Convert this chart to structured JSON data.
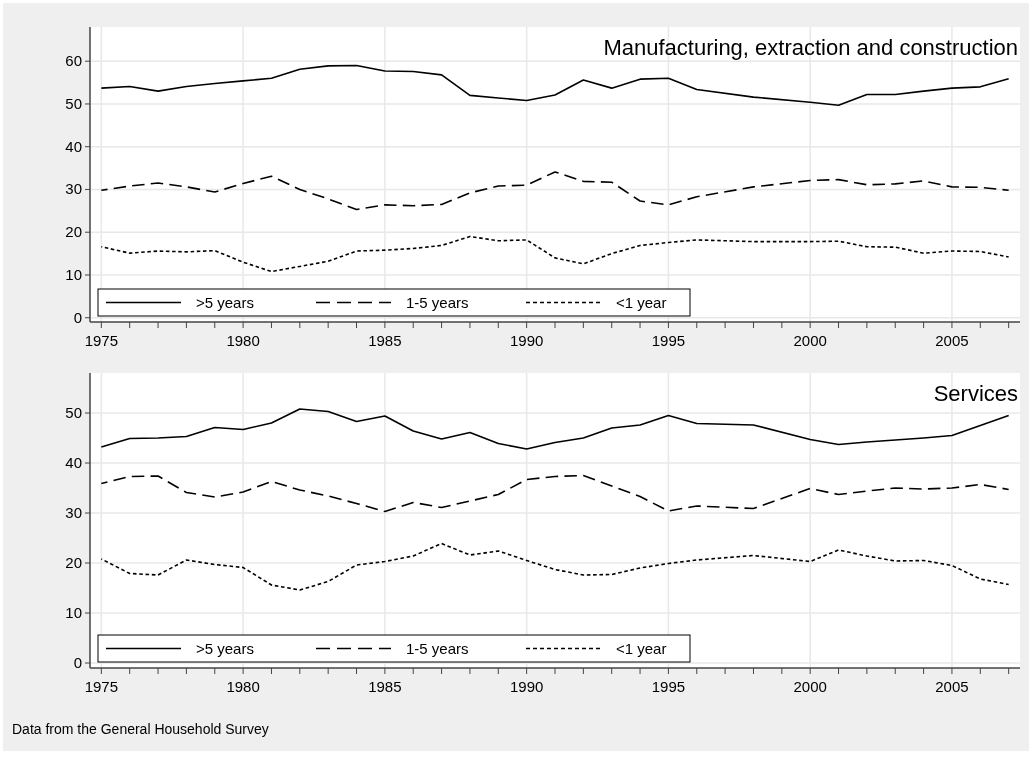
{
  "chart_data": [
    {
      "type": "line",
      "title": "Manufacturing, extraction and construction",
      "x": [
        1975,
        1976,
        1977,
        1978,
        1979,
        1980,
        1981,
        1982,
        1983,
        1984,
        1985,
        1986,
        1987,
        1988,
        1989,
        1990,
        1991,
        1992,
        1993,
        1994,
        1995,
        1996,
        1998,
        2000,
        2001,
        2002,
        2003,
        2004,
        2005,
        2006,
        2007
      ],
      "series": [
        {
          "name": ">5 years",
          "color": "#000000",
          "line_style": "solid",
          "values": [
            53.7,
            54.1,
            53.0,
            54.1,
            54.8,
            55.4,
            56.0,
            58.1,
            58.9,
            59.0,
            57.7,
            57.6,
            56.8,
            52.0,
            51.4,
            50.8,
            52.1,
            55.6,
            53.7,
            55.8,
            56.0,
            53.4,
            51.6,
            50.4,
            49.7,
            52.2,
            52.2,
            53.0,
            53.7,
            54.0,
            55.9
          ]
        },
        {
          "name": "1-5 years",
          "color": "#000000",
          "line_style": "dashed",
          "values": [
            29.8,
            30.8,
            31.5,
            30.6,
            29.4,
            31.4,
            33.1,
            30.0,
            27.8,
            25.3,
            26.4,
            26.2,
            26.5,
            29.2,
            30.8,
            31.0,
            34.1,
            31.9,
            31.7,
            27.3,
            26.4,
            28.3,
            30.6,
            32.1,
            32.3,
            31.1,
            31.3,
            32.0,
            30.6,
            30.5,
            29.8
          ]
        },
        {
          "name": "<1 year",
          "color": "#000000",
          "line_style": "dotted",
          "values": [
            16.6,
            15.1,
            15.6,
            15.4,
            15.7,
            13.0,
            10.8,
            12.0,
            13.2,
            15.6,
            15.8,
            16.2,
            16.9,
            19.0,
            18.0,
            18.2,
            14.0,
            12.6,
            15.0,
            16.9,
            17.6,
            18.2,
            17.8,
            17.8,
            17.9,
            16.6,
            16.5,
            15.1,
            15.6,
            15.5,
            14.2
          ]
        }
      ],
      "xlim": [
        1974.6,
        2007.4
      ],
      "ylim": [
        -1,
        68
      ],
      "yticks": [
        0,
        10,
        20,
        30,
        40,
        50,
        60
      ],
      "xticks": [
        1975,
        {
          "value": 1976,
          "label": null
        },
        {
          "value": 1977,
          "label": null
        },
        {
          "value": 1978,
          "label": null
        },
        {
          "value": 1979,
          "label": null
        },
        1980,
        {
          "value": 1981,
          "label": null
        },
        {
          "value": 1982,
          "label": null
        },
        {
          "value": 1983,
          "label": null
        },
        {
          "value": 1984,
          "label": null
        },
        1985,
        {
          "value": 1986,
          "label": null
        },
        {
          "value": 1987,
          "label": null
        },
        {
          "value": 1988,
          "label": null
        },
        {
          "value": 1989,
          "label": null
        },
        1990,
        {
          "value": 1991,
          "label": null
        },
        {
          "value": 1992,
          "label": null
        },
        {
          "value": 1993,
          "label": null
        },
        {
          "value": 1994,
          "label": null
        },
        1995,
        {
          "value": 1996,
          "label": null
        },
        {
          "value": 1997,
          "label": null
        },
        {
          "value": 1998,
          "label": null
        },
        {
          "value": 1999,
          "label": null
        },
        2000,
        {
          "value": 2001,
          "label": null
        },
        {
          "value": 2002,
          "label": null
        },
        {
          "value": 2003,
          "label": null
        },
        {
          "value": 2004,
          "label": null
        },
        2005,
        {
          "value": 2006,
          "label": null
        },
        {
          "value": 2007,
          "label": null
        }
      ],
      "grid": true,
      "legend": "bottom left"
    },
    {
      "type": "line",
      "title": "Services",
      "x": [
        1975,
        1976,
        1977,
        1978,
        1979,
        1980,
        1981,
        1982,
        1983,
        1984,
        1985,
        1986,
        1987,
        1988,
        1989,
        1990,
        1991,
        1992,
        1993,
        1994,
        1995,
        1996,
        1998,
        2000,
        2001,
        2002,
        2003,
        2004,
        2005,
        2006,
        2007
      ],
      "series": [
        {
          "name": ">5 years",
          "color": "#000000",
          "line_style": "solid",
          "values": [
            43.2,
            44.9,
            45.0,
            45.3,
            47.1,
            46.7,
            48.0,
            50.8,
            50.3,
            48.3,
            49.4,
            46.4,
            44.8,
            46.1,
            43.9,
            42.8,
            44.1,
            45.0,
            47.0,
            47.6,
            49.5,
            47.9,
            47.6,
            44.7,
            43.7,
            44.2,
            44.6,
            45.0,
            45.5,
            47.5,
            49.5
          ]
        },
        {
          "name": "1-5 years",
          "color": "#000000",
          "line_style": "dashed",
          "values": [
            35.9,
            37.3,
            37.4,
            34.1,
            33.2,
            34.2,
            36.3,
            34.6,
            33.4,
            31.9,
            30.3,
            32.1,
            31.1,
            32.4,
            33.7,
            36.7,
            37.3,
            37.5,
            35.4,
            33.3,
            30.4,
            31.4,
            30.9,
            34.9,
            33.7,
            34.4,
            35.0,
            34.8,
            35.0,
            35.7,
            34.7
          ]
        },
        {
          "name": "<1 year",
          "color": "#000000",
          "line_style": "dotted",
          "values": [
            20.8,
            17.9,
            17.6,
            20.6,
            19.7,
            19.1,
            15.6,
            14.6,
            16.3,
            19.6,
            20.3,
            21.4,
            23.9,
            21.6,
            22.4,
            20.5,
            18.7,
            17.6,
            17.7,
            19.0,
            19.9,
            20.6,
            21.5,
            20.3,
            22.6,
            21.4,
            20.4,
            20.5,
            19.5,
            16.8,
            15.7
          ]
        }
      ],
      "xlim": [
        1974.6,
        2007.4
      ],
      "ylim": [
        -1,
        58
      ],
      "yticks": [
        0,
        10,
        20,
        30,
        40,
        50
      ],
      "xticks": [
        1975,
        {
          "value": 1976,
          "label": null
        },
        {
          "value": 1977,
          "label": null
        },
        {
          "value": 1978,
          "label": null
        },
        {
          "value": 1979,
          "label": null
        },
        1980,
        {
          "value": 1981,
          "label": null
        },
        {
          "value": 1982,
          "label": null
        },
        {
          "value": 1983,
          "label": null
        },
        {
          "value": 1984,
          "label": null
        },
        1985,
        {
          "value": 1986,
          "label": null
        },
        {
          "value": 1987,
          "label": null
        },
        {
          "value": 1988,
          "label": null
        },
        {
          "value": 1989,
          "label": null
        },
        1990,
        {
          "value": 1991,
          "label": null
        },
        {
          "value": 1992,
          "label": null
        },
        {
          "value": 1993,
          "label": null
        },
        {
          "value": 1994,
          "label": null
        },
        1995,
        {
          "value": 1996,
          "label": null
        },
        {
          "value": 1997,
          "label": null
        },
        {
          "value": 1998,
          "label": null
        },
        {
          "value": 1999,
          "label": null
        },
        2000,
        {
          "value": 2001,
          "label": null
        },
        {
          "value": 2002,
          "label": null
        },
        {
          "value": 2003,
          "label": null
        },
        {
          "value": 2004,
          "label": null
        },
        2005,
        {
          "value": 2006,
          "label": null
        },
        {
          "value": 2007,
          "label": null
        }
      ],
      "grid": true,
      "legend": "bottom left",
      "annotations": [
        "Data from the General Household Survey"
      ]
    }
  ]
}
